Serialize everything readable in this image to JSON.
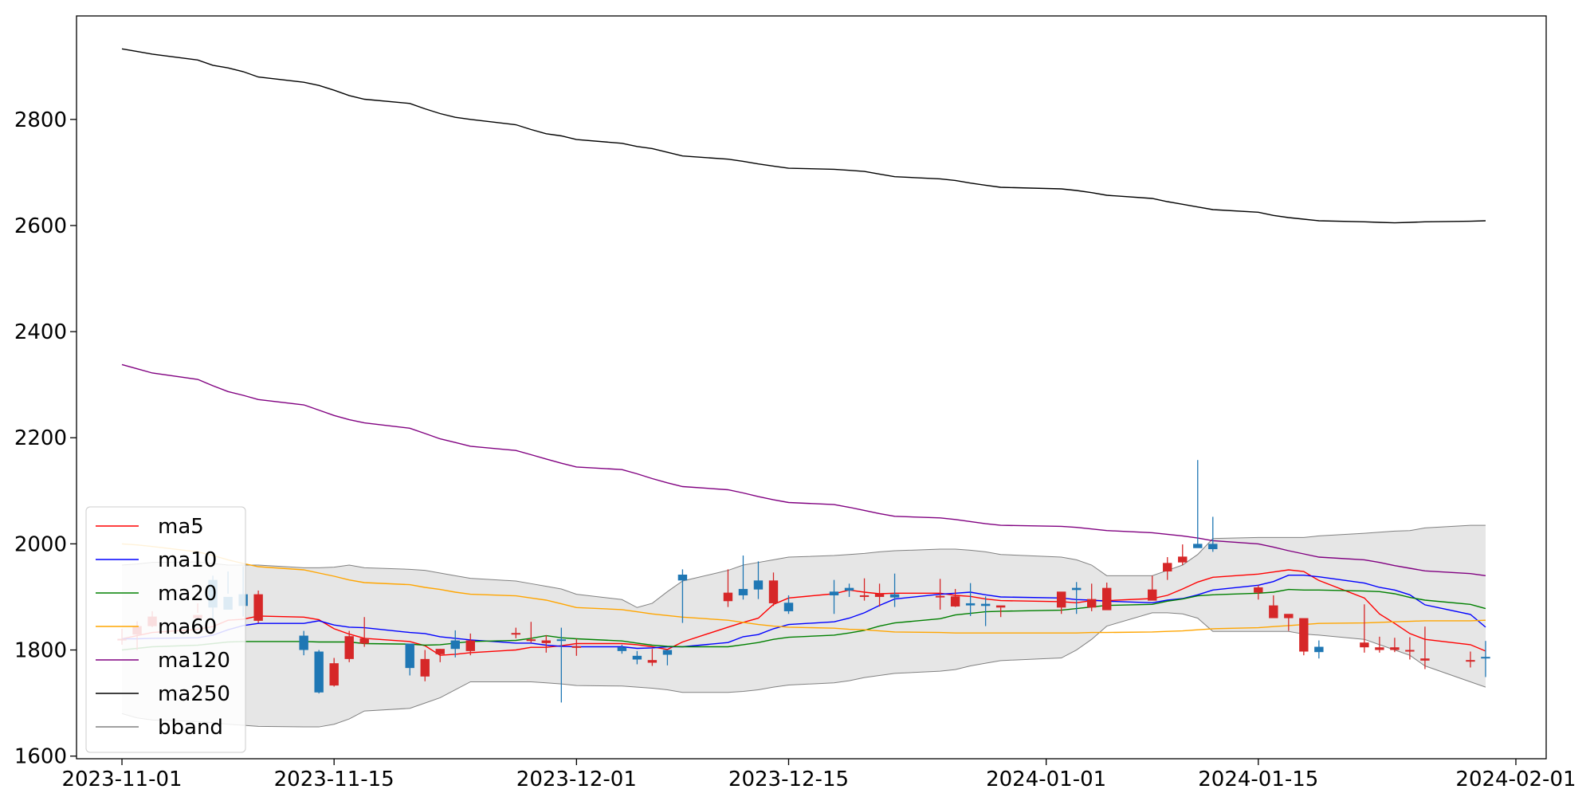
{
  "chart_data": {
    "type": "candlestick",
    "xlim": [
      "2023-10-29",
      "2024-02-03"
    ],
    "ylim": [
      1595,
      2995
    ],
    "x_ticks": [
      "2023-11-01",
      "2023-11-15",
      "2023-12-01",
      "2023-12-15",
      "2024-01-01",
      "2024-01-15",
      "2024-02-01"
    ],
    "y_ticks": [
      1600,
      1800,
      2000,
      2200,
      2400,
      2600,
      2800
    ],
    "dates": [
      "2023-11-01",
      "2023-11-02",
      "2023-11-03",
      "2023-11-06",
      "2023-11-07",
      "2023-11-08",
      "2023-11-09",
      "2023-11-10",
      "2023-11-13",
      "2023-11-14",
      "2023-11-15",
      "2023-11-16",
      "2023-11-17",
      "2023-11-20",
      "2023-11-21",
      "2023-11-22",
      "2023-11-23",
      "2023-11-24",
      "2023-11-27",
      "2023-11-28",
      "2023-11-29",
      "2023-11-30",
      "2023-12-01",
      "2023-12-04",
      "2023-12-05",
      "2023-12-06",
      "2023-12-07",
      "2023-12-08",
      "2023-12-11",
      "2023-12-12",
      "2023-12-13",
      "2023-12-14",
      "2023-12-15",
      "2023-12-18",
      "2023-12-19",
      "2023-12-20",
      "2023-12-21",
      "2023-12-22",
      "2023-12-25",
      "2023-12-26",
      "2023-12-27",
      "2023-12-28",
      "2023-12-29",
      "2024-01-02",
      "2024-01-03",
      "2024-01-04",
      "2024-01-05",
      "2024-01-08",
      "2024-01-09",
      "2024-01-10",
      "2024-01-11",
      "2024-01-12",
      "2024-01-15",
      "2024-01-16",
      "2024-01-17",
      "2024-01-18",
      "2024-01-19",
      "2024-01-22",
      "2024-01-23",
      "2024-01-24",
      "2024-01-25",
      "2024-01-26",
      "2024-01-29",
      "2024-01-30"
    ],
    "candles": {
      "open": [
        1821,
        1829,
        1845,
        1860,
        1932,
        1900,
        1905,
        1855,
        1827,
        1797,
        1733,
        1783,
        1812,
        1812,
        1750,
        1792,
        1818,
        1798,
        1830,
        1820,
        1813,
        1820,
        1807,
        1805,
        1789,
        1776,
        1800,
        1942,
        1892,
        1915,
        1931,
        1888,
        1889,
        1910,
        1917,
        1900,
        1900,
        1905,
        1900,
        1882,
        1888,
        1887,
        1880,
        1880,
        1917,
        1880,
        1875,
        1893,
        1948,
        1965,
        2000,
        2000,
        1908,
        1860,
        1860,
        1797,
        1806,
        1805,
        1800,
        1800,
        1800,
        1780,
        1780,
        1787
      ],
      "close": [
        1821,
        1845,
        1863,
        1866,
        1880,
        1876,
        1883,
        1905,
        1800,
        1720,
        1775,
        1826,
        1822,
        1766,
        1783,
        1802,
        1802,
        1818,
        1832,
        1820,
        1818,
        1817,
        1807,
        1798,
        1782,
        1781,
        1791,
        1931,
        1908,
        1903,
        1914,
        1931,
        1873,
        1903,
        1912,
        1903,
        1906,
        1899,
        1902,
        1901,
        1884,
        1883,
        1884,
        1910,
        1913,
        1896,
        1917,
        1914,
        1964,
        1976,
        1992,
        1990,
        1918,
        1884,
        1868,
        1860,
        1796,
        1814,
        1805,
        1805,
        1800,
        1784,
        1781,
        1785
      ],
      "high": [
        1840,
        1854,
        1873,
        1888,
        1940,
        1948,
        1958,
        1912,
        1836,
        1800,
        1785,
        1836,
        1862,
        1812,
        1800,
        1802,
        1837,
        1831,
        1842,
        1853,
        1828,
        1842,
        1821,
        1810,
        1798,
        1802,
        1799,
        1952,
        1952,
        1978,
        1967,
        1946,
        1903,
        1932,
        1925,
        1935,
        1925,
        1944,
        1934,
        1915,
        1926,
        1901,
        1880,
        1890,
        1928,
        1925,
        1927,
        1940,
        1975,
        1999,
        2158,
        2051,
        1922,
        1903,
        1867,
        1850,
        1818,
        1886,
        1825,
        1823,
        1824,
        1844,
        1797,
        1817
      ],
      "low": [
        1810,
        1800,
        1843,
        1870,
        1852,
        1906,
        1863,
        1851,
        1790,
        1718,
        1731,
        1777,
        1806,
        1752,
        1741,
        1777,
        1786,
        1790,
        1822,
        1814,
        1795,
        1701,
        1789,
        1793,
        1773,
        1770,
        1771,
        1851,
        1881,
        1895,
        1896,
        1883,
        1868,
        1868,
        1900,
        1893,
        1882,
        1881,
        1876,
        1881,
        1864,
        1845,
        1862,
        1868,
        1868,
        1873,
        1880,
        1897,
        1932,
        1960,
        1997,
        1985,
        1895,
        1870,
        1836,
        1790,
        1784,
        1795,
        1795,
        1796,
        1782,
        1764,
        1767,
        1749
      ]
    },
    "series": [
      {
        "name": "ma5",
        "color": "#ff0000",
        "values": [
          1821,
          1827,
          1833,
          1839,
          1844,
          1856,
          1858,
          1864,
          1862,
          1857,
          1840,
          1830,
          1822,
          1816,
          1808,
          1790,
          1792,
          1795,
          1800,
          1805,
          1805,
          1808,
          1812,
          1812,
          1810,
          1806,
          1801,
          1815,
          1843,
          1852,
          1860,
          1886,
          1898,
          1906,
          1913,
          1909,
          1906,
          1907,
          1907,
          1903,
          1901,
          1896,
          1893,
          1891,
          1889,
          1893,
          1893,
          1897,
          1903,
          1915,
          1928,
          1937,
          1943,
          1947,
          1951,
          1948,
          1931,
          1898,
          1868,
          1850,
          1831,
          1820,
          1810,
          1798
        ]
      },
      {
        "name": "ma10",
        "color": "#0000ff",
        "values": [
          1821,
          1821,
          1822,
          1823,
          1828,
          1838,
          1846,
          1850,
          1850,
          1855,
          1847,
          1843,
          1842,
          1833,
          1831,
          1825,
          1822,
          1819,
          1813,
          1813,
          1809,
          1807,
          1806,
          1806,
          1803,
          1804,
          1806,
          1806,
          1814,
          1825,
          1829,
          1840,
          1848,
          1853,
          1860,
          1870,
          1884,
          1896,
          1905,
          1907,
          1909,
          1904,
          1900,
          1898,
          1895,
          1894,
          1892,
          1889,
          1894,
          1897,
          1904,
          1913,
          1922,
          1929,
          1941,
          1941,
          1938,
          1926,
          1918,
          1913,
          1904,
          1885,
          1867,
          1843
        ]
      },
      {
        "name": "ma20",
        "color": "#008000",
        "values": [
          1800,
          1803,
          1806,
          1809,
          1812,
          1815,
          1816,
          1816,
          1816,
          1815,
          1815,
          1815,
          1812,
          1811,
          1809,
          1810,
          1813,
          1816,
          1818,
          1822,
          1827,
          1823,
          1821,
          1817,
          1813,
          1809,
          1807,
          1806,
          1806,
          1810,
          1814,
          1820,
          1824,
          1828,
          1832,
          1837,
          1845,
          1851,
          1859,
          1866,
          1869,
          1872,
          1873,
          1875,
          1878,
          1881,
          1884,
          1886,
          1892,
          1896,
          1902,
          1904,
          1907,
          1909,
          1914,
          1913,
          1913,
          1911,
          1910,
          1906,
          1899,
          1894,
          1886,
          1878
        ]
      },
      {
        "name": "ma60",
        "color": "#ffa500",
        "values": [
          2000,
          1998,
          1995,
          1985,
          1978,
          1970,
          1963,
          1957,
          1951,
          1945,
          1939,
          1932,
          1927,
          1923,
          1918,
          1914,
          1909,
          1905,
          1902,
          1898,
          1894,
          1887,
          1880,
          1876,
          1872,
          1868,
          1865,
          1862,
          1856,
          1852,
          1848,
          1845,
          1843,
          1841,
          1839,
          1838,
          1836,
          1834,
          1833,
          1832,
          1832,
          1832,
          1832,
          1832,
          1832,
          1833,
          1833,
          1834,
          1835,
          1836,
          1838,
          1840,
          1842,
          1844,
          1846,
          1848,
          1850,
          1851,
          1852,
          1853,
          1854,
          1855,
          1855,
          1856
        ]
      },
      {
        "name": "ma120",
        "color": "#800080",
        "values": [
          2338,
          2330,
          2322,
          2310,
          2298,
          2287,
          2280,
          2272,
          2262,
          2252,
          2242,
          2234,
          2228,
          2218,
          2208,
          2198,
          2191,
          2184,
          2176,
          2168,
          2160,
          2152,
          2145,
          2140,
          2132,
          2123,
          2115,
          2108,
          2102,
          2096,
          2089,
          2083,
          2078,
          2074,
          2069,
          2063,
          2057,
          2052,
          2049,
          2046,
          2042,
          2038,
          2035,
          2033,
          2031,
          2028,
          2025,
          2021,
          2018,
          2015,
          2011,
          2006,
          2000,
          1994,
          1987,
          1981,
          1975,
          1970,
          1965,
          1959,
          1954,
          1949,
          1944,
          1940
        ]
      },
      {
        "name": "ma250",
        "color": "#000000",
        "values": [
          2933,
          2928,
          2923,
          2912,
          2902,
          2897,
          2890,
          2880,
          2870,
          2864,
          2855,
          2845,
          2838,
          2830,
          2820,
          2811,
          2804,
          2800,
          2790,
          2781,
          2773,
          2769,
          2762,
          2755,
          2749,
          2745,
          2738,
          2731,
          2725,
          2721,
          2716,
          2712,
          2708,
          2706,
          2704,
          2702,
          2697,
          2692,
          2688,
          2685,
          2680,
          2676,
          2672,
          2669,
          2666,
          2662,
          2657,
          2651,
          2645,
          2640,
          2635,
          2630,
          2625,
          2619,
          2615,
          2612,
          2609,
          2607,
          2606,
          2605,
          2606,
          2607,
          2608,
          2609
        ]
      }
    ],
    "bband": {
      "name": "bband",
      "color": "#808080",
      "fill_color": "#e6e6e6",
      "upper": [
        1960,
        1962,
        1965,
        1966,
        1963,
        1960,
        1960,
        1960,
        1955,
        1955,
        1956,
        1960,
        1955,
        1952,
        1950,
        1945,
        1940,
        1935,
        1930,
        1925,
        1920,
        1915,
        1905,
        1895,
        1880,
        1888,
        1910,
        1930,
        1950,
        1960,
        1965,
        1970,
        1975,
        1978,
        1980,
        1982,
        1985,
        1987,
        1990,
        1990,
        1988,
        1985,
        1980,
        1975,
        1970,
        1960,
        1940,
        1940,
        1950,
        1960,
        1980,
        2010,
        2012,
        2012,
        2012,
        2012,
        2015,
        2020,
        2022,
        2024,
        2025,
        2030,
        2035,
        2035
      ],
      "lower": [
        1680,
        1672,
        1668,
        1665,
        1663,
        1660,
        1658,
        1656,
        1655,
        1655,
        1660,
        1670,
        1685,
        1690,
        1700,
        1710,
        1725,
        1740,
        1740,
        1740,
        1738,
        1736,
        1733,
        1732,
        1730,
        1728,
        1725,
        1720,
        1720,
        1722,
        1725,
        1730,
        1734,
        1738,
        1742,
        1748,
        1752,
        1756,
        1760,
        1763,
        1770,
        1775,
        1780,
        1785,
        1800,
        1820,
        1845,
        1870,
        1870,
        1868,
        1860,
        1835,
        1835,
        1835,
        1835,
        1830,
        1828,
        1820,
        1810,
        1800,
        1790,
        1770,
        1740,
        1730
      ]
    },
    "legend": {
      "placement": "lower-left",
      "entries": [
        "ma5",
        "ma10",
        "ma20",
        "ma60",
        "ma120",
        "ma250",
        "bband"
      ]
    },
    "up_color": "#d62728",
    "down_color": "#1f77b4",
    "grid": false
  }
}
